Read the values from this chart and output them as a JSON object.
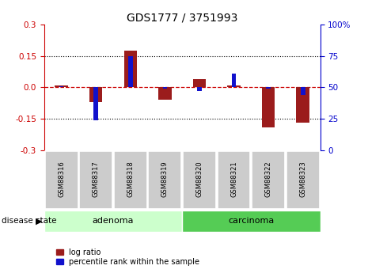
{
  "title": "GDS1777 / 3751993",
  "samples": [
    "GSM88316",
    "GSM88317",
    "GSM88318",
    "GSM88319",
    "GSM88320",
    "GSM88321",
    "GSM88322",
    "GSM88323"
  ],
  "log_ratio": [
    0.01,
    -0.07,
    0.175,
    -0.06,
    0.04,
    0.01,
    -0.19,
    -0.17
  ],
  "percentile_rank": [
    51,
    24,
    75,
    49,
    47,
    61,
    49,
    44
  ],
  "adenoma_count": 4,
  "carcinoma_count": 4,
  "ylim_left": [
    -0.3,
    0.3
  ],
  "ylim_right": [
    0,
    100
  ],
  "yticks_left": [
    -0.3,
    -0.15,
    0.0,
    0.15,
    0.3
  ],
  "yticks_right": [
    0,
    25,
    50,
    75,
    100
  ],
  "hlines": [
    0.15,
    -0.15
  ],
  "red_color": "#9B1C1C",
  "blue_color": "#1111CC",
  "adenoma_color": "#CCFFCC",
  "carcinoma_color": "#55CC55",
  "tick_label_color_left": "#CC0000",
  "tick_label_color_right": "#0000CC",
  "red_bar_width": 0.38,
  "blue_bar_width": 0.13,
  "legend_labels": [
    "log ratio",
    "percentile rank within the sample"
  ]
}
